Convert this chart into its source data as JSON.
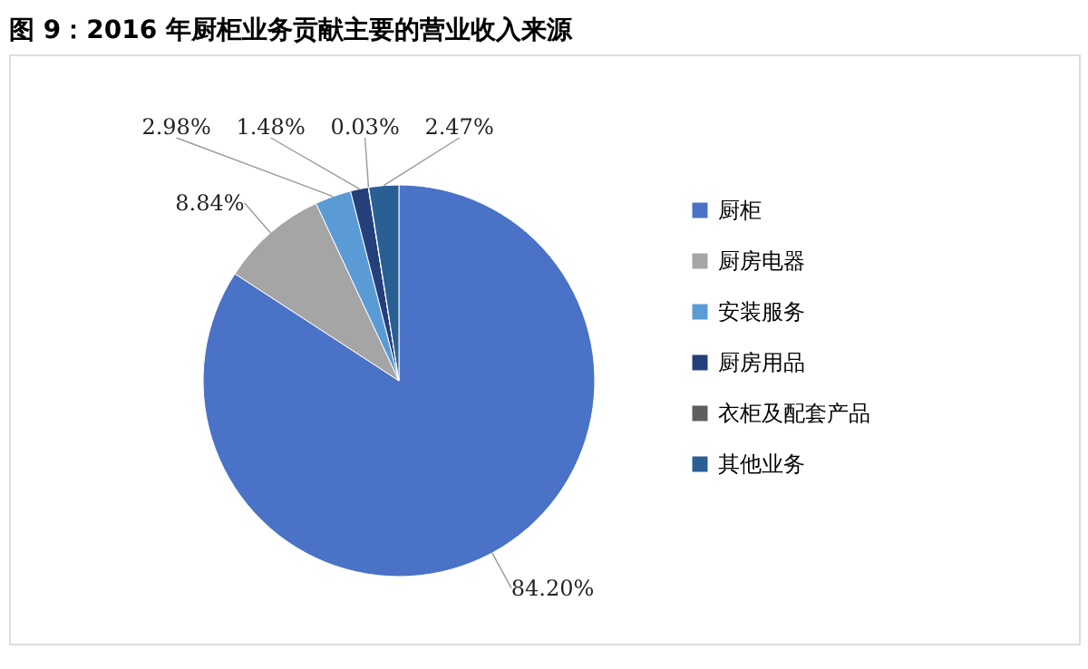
{
  "chart_data": {
    "type": "pie",
    "title": "图 9：2016 年厨柜业务贡献主要的营业收入来源",
    "categories": [
      "厨柜",
      "厨房电器",
      "安装服务",
      "厨房用品",
      "衣柜及配套产品",
      "其他业务"
    ],
    "values": [
      84.2,
      8.84,
      2.98,
      1.48,
      0.03,
      2.47
    ],
    "value_labels": [
      "84.20%",
      "8.84%",
      "2.98%",
      "1.48%",
      "0.03%",
      "2.47%"
    ],
    "colors": [
      "#4a72c6",
      "#a5a5a5",
      "#5b9bd5",
      "#24407a",
      "#5f5f5f",
      "#2a5f94"
    ],
    "legend": "right"
  }
}
